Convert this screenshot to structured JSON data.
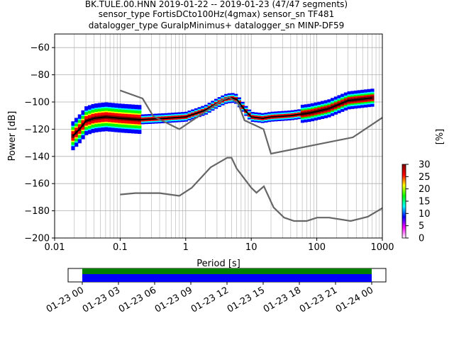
{
  "title_lines": [
    "BK.TULE.00.HNN   2019-01-22 -- 2019-01-23  (47/47 segments)",
    "sensor_type FortisDCto100Hz(4gmax) sensor_sn TF481",
    "datalogger_type GuralpMinimus+ datalogger_sn MINP-DF59"
  ],
  "chart_data": {
    "type": "heatmap",
    "xlabel": "Period [s]",
    "ylabel": "Power [dB]",
    "xscale": "log",
    "xlim": [
      0.01,
      1000
    ],
    "ylim": [
      -200,
      -50
    ],
    "grid": true,
    "x_ticks": [
      0.01,
      0.1,
      1,
      10,
      100,
      1000
    ],
    "x_tick_labels": [
      "0.01",
      "0.1",
      "1",
      "10",
      "100",
      "1000"
    ],
    "y_ticks": [
      -200,
      -180,
      -160,
      -140,
      -120,
      -100,
      -80,
      -60
    ],
    "y_tick_labels": [
      "−200",
      "−180",
      "−160",
      "−140",
      "−120",
      "−100",
      "−80",
      "−60"
    ],
    "colorbar": {
      "label": "[%]",
      "min": 0,
      "max": 30,
      "ticks": [
        0,
        5,
        10,
        15,
        20,
        25,
        30
      ],
      "tick_labels": [
        "0",
        "5",
        "10",
        "15",
        "20",
        "25",
        "30"
      ],
      "colors": [
        "#ffffff",
        "#ff00ff",
        "#0000ff",
        "#00ffff",
        "#00ff00",
        "#ffff00",
        "#ff0000",
        "#800000"
      ]
    },
    "series": [
      {
        "role": "mode",
        "color": "#000000",
        "points": [
          [
            0.019,
            -125
          ],
          [
            0.025,
            -119
          ],
          [
            0.03,
            -114
          ],
          [
            0.04,
            -112
          ],
          [
            0.06,
            -111
          ],
          [
            0.1,
            -112
          ],
          [
            0.2,
            -113
          ],
          [
            0.5,
            -112
          ],
          [
            1,
            -111
          ],
          [
            2,
            -106
          ],
          [
            3,
            -101
          ],
          [
            4,
            -98
          ],
          [
            5,
            -97
          ],
          [
            6,
            -98
          ],
          [
            8,
            -106
          ],
          [
            10,
            -111
          ],
          [
            15,
            -112
          ],
          [
            20,
            -111
          ],
          [
            40,
            -110
          ],
          [
            80,
            -108
          ],
          [
            150,
            -105
          ],
          [
            300,
            -99
          ],
          [
            700,
            -97
          ]
        ]
      },
      {
        "role": "nlnm",
        "color": "#666666",
        "points": [
          [
            0.1,
            -168
          ],
          [
            0.17,
            -167
          ],
          [
            0.4,
            -167
          ],
          [
            0.8,
            -169
          ],
          [
            1.24,
            -163
          ],
          [
            2.4,
            -148
          ],
          [
            4.3,
            -141
          ],
          [
            5,
            -141
          ],
          [
            6,
            -149
          ],
          [
            10.0,
            -163
          ],
          [
            12.0,
            -166.7
          ],
          [
            15.6,
            -162
          ],
          [
            21.9,
            -177.5
          ],
          [
            31.6,
            -185
          ],
          [
            45,
            -187.5
          ],
          [
            70,
            -187.5
          ],
          [
            101,
            -185
          ],
          [
            154,
            -185
          ],
          [
            328,
            -187.5
          ],
          [
            600,
            -184.4
          ],
          [
            1000,
            -178
          ]
        ]
      },
      {
        "role": "nhnm",
        "color": "#666666",
        "points": [
          [
            0.1,
            -91.5
          ],
          [
            0.22,
            -97.4
          ],
          [
            0.32,
            -110.5
          ],
          [
            0.8,
            -120
          ],
          [
            3.8,
            -98
          ],
          [
            4.6,
            -96.5
          ],
          [
            6.3,
            -101
          ],
          [
            7.9,
            -113.5
          ],
          [
            15.4,
            -120
          ],
          [
            20,
            -138
          ],
          [
            354.8,
            -126
          ],
          [
            1000,
            -111.5
          ]
        ]
      }
    ],
    "availability": {
      "tick_labels": [
        "01-23 00",
        "01-23 03",
        "01-23 06",
        "01-23 09",
        "01-23 12",
        "01-23 15",
        "01-23 18",
        "01-23 21",
        "01-24 00"
      ],
      "bar_colors": [
        "#008000",
        "#0000ff"
      ]
    }
  }
}
